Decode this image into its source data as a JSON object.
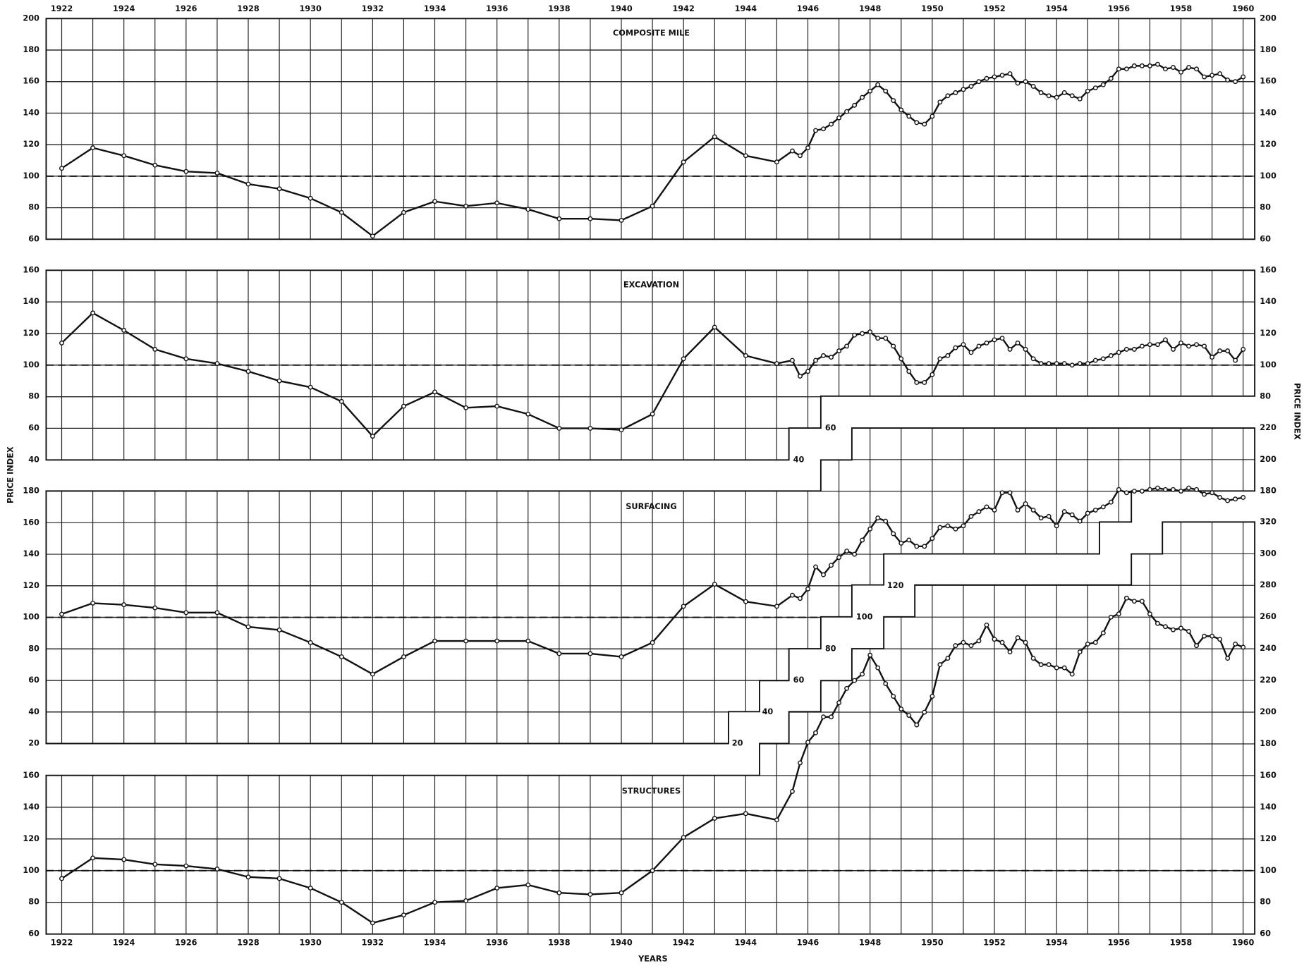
{
  "chart_data": {
    "type": "line",
    "xlabel": "YEARS",
    "ylabel": "PRICE INDEX",
    "xlim": [
      1921.5,
      1960.4
    ],
    "xticks": [
      1922,
      1924,
      1926,
      1928,
      1930,
      1932,
      1934,
      1936,
      1938,
      1940,
      1942,
      1944,
      1946,
      1948,
      1950,
      1952,
      1954,
      1956,
      1958,
      1960
    ],
    "xgrid": [
      1922,
      1923,
      1924,
      1925,
      1926,
      1927,
      1928,
      1929,
      1930,
      1931,
      1932,
      1933,
      1934,
      1935,
      1936,
      1937,
      1938,
      1939,
      1940,
      1941,
      1942,
      1943,
      1944,
      1945,
      1946,
      1947,
      1948,
      1949,
      1950,
      1951,
      1952,
      1953,
      1954,
      1955,
      1956,
      1957,
      1958,
      1959,
      1960
    ],
    "color": "#111111",
    "x": [
      1922,
      1923,
      1924,
      1925,
      1926,
      1927,
      1928,
      1929,
      1930,
      1931,
      1932,
      1933,
      1934,
      1935,
      1936,
      1937,
      1938,
      1939,
      1940,
      1941,
      1942,
      1943,
      1944,
      1945,
      1945.5,
      1945.75,
      1946,
      1946.25,
      1946.5,
      1946.75,
      1947,
      1947.25,
      1947.5,
      1947.75,
      1948,
      1948.25,
      1948.5,
      1948.75,
      1949,
      1949.25,
      1949.5,
      1949.75,
      1950,
      1950.25,
      1950.5,
      1950.75,
      1951,
      1951.25,
      1951.5,
      1951.75,
      1952,
      1952.25,
      1952.5,
      1952.75,
      1953,
      1953.25,
      1953.5,
      1953.75,
      1954,
      1954.25,
      1954.5,
      1954.75,
      1955,
      1955.25,
      1955.5,
      1955.75,
      1956,
      1956.25,
      1956.5,
      1956.75,
      1957,
      1957.25,
      1957.5,
      1957.75,
      1958,
      1958.25,
      1958.5,
      1958.75,
      1959,
      1959.25,
      1959.5,
      1959.75,
      1960
    ],
    "panels": [
      {
        "title": "COMPOSITE MILE",
        "ylim": [
          60,
          200
        ],
        "yticks": [
          60,
          80,
          100,
          120,
          140,
          160,
          180,
          200
        ],
        "y2ticks": [
          60,
          80,
          100,
          120,
          140,
          160,
          180,
          200
        ],
        "inner_ticks": [],
        "reference": 100,
        "values": [
          105,
          118,
          113,
          107,
          103,
          102,
          95,
          92,
          86,
          77,
          62,
          77,
          84,
          81,
          83,
          79,
          73,
          73,
          72,
          81,
          109,
          125,
          113,
          109,
          116,
          113,
          118,
          129,
          130,
          133,
          137,
          141,
          145,
          150,
          154,
          158,
          154,
          148,
          142,
          138,
          134,
          133,
          138,
          147,
          151,
          153,
          155,
          157,
          160,
          162,
          163,
          164,
          165,
          159,
          160,
          157,
          153,
          151,
          150,
          153,
          151,
          149,
          154,
          156,
          158,
          162,
          168,
          168,
          170,
          170,
          170,
          171,
          168,
          169,
          166,
          169,
          168,
          163,
          164,
          165,
          161,
          160,
          163
        ]
      },
      {
        "title": "EXCAVATION",
        "ylim": [
          40,
          160
        ],
        "yticks": [
          40,
          60,
          80,
          100,
          120,
          140,
          160
        ],
        "y2ticks": [
          80,
          100,
          120,
          140,
          160
        ],
        "inner_ticks": [
          60,
          40
        ],
        "reference": 100,
        "values": [
          114,
          133,
          122,
          110,
          104,
          101,
          96,
          90,
          86,
          77,
          55,
          74,
          83,
          73,
          74,
          69,
          60,
          60,
          59,
          69,
          104,
          124,
          106,
          101,
          103,
          93,
          96,
          103,
          106,
          105,
          109,
          112,
          119,
          120,
          121,
          117,
          117,
          112,
          104,
          96,
          89,
          89,
          94,
          104,
          106,
          111,
          113,
          108,
          112,
          114,
          116,
          117,
          110,
          114,
          110,
          104,
          101,
          101,
          101,
          101,
          100,
          101,
          101,
          103,
          104,
          106,
          108,
          110,
          110,
          112,
          113,
          113,
          116,
          110,
          114,
          112,
          113,
          112,
          105,
          109,
          109,
          103,
          110
        ]
      },
      {
        "title": "SURFACING",
        "ylim": [
          20,
          220
        ],
        "yticks": [
          20,
          40,
          60,
          80,
          100,
          120,
          140,
          160,
          180
        ],
        "y2ticks": [
          180,
          200,
          220
        ],
        "inner_ticks": [
          120,
          100,
          80,
          60,
          40,
          20
        ],
        "reference": 100,
        "values": [
          102,
          109,
          108,
          106,
          103,
          103,
          94,
          92,
          84,
          75,
          64,
          75,
          85,
          85,
          85,
          85,
          77,
          77,
          75,
          84,
          107,
          121,
          110,
          107,
          114,
          112,
          118,
          132,
          127,
          133,
          138,
          142,
          140,
          149,
          156,
          163,
          161,
          153,
          147,
          149,
          145,
          145,
          150,
          157,
          158,
          156,
          158,
          164,
          167,
          170,
          168,
          179,
          179,
          168,
          172,
          168,
          163,
          164,
          158,
          167,
          165,
          161,
          166,
          168,
          170,
          173,
          181,
          179,
          180,
          180,
          181,
          182,
          181,
          181,
          180,
          182,
          181,
          178,
          179,
          176,
          174,
          175,
          176
        ]
      },
      {
        "title": "STRUCTURES",
        "ylim": [
          60,
          320
        ],
        "yticks": [
          60,
          80,
          100,
          120,
          140,
          160
        ],
        "y2ticks": [
          60,
          80,
          100,
          120,
          140,
          160,
          180,
          200,
          220,
          240,
          260,
          280,
          300,
          320
        ],
        "inner_ticks": [],
        "reference": 100,
        "values": [
          95,
          108,
          107,
          104,
          103,
          101,
          96,
          95,
          89,
          80,
          67,
          72,
          80,
          81,
          89,
          91,
          86,
          85,
          86,
          100,
          121,
          133,
          136,
          132,
          150,
          168,
          181,
          187,
          197,
          197,
          206,
          215,
          220,
          224,
          236,
          228,
          218,
          210,
          202,
          198,
          192,
          200,
          210,
          230,
          234,
          242,
          244,
          242,
          245,
          255,
          246,
          244,
          238,
          247,
          244,
          234,
          230,
          230,
          228,
          228,
          224,
          238,
          243,
          244,
          250,
          260,
          262,
          272,
          270,
          270,
          262,
          256,
          254,
          252,
          253,
          251,
          242,
          248,
          248,
          246,
          234,
          243,
          241
        ]
      }
    ]
  }
}
